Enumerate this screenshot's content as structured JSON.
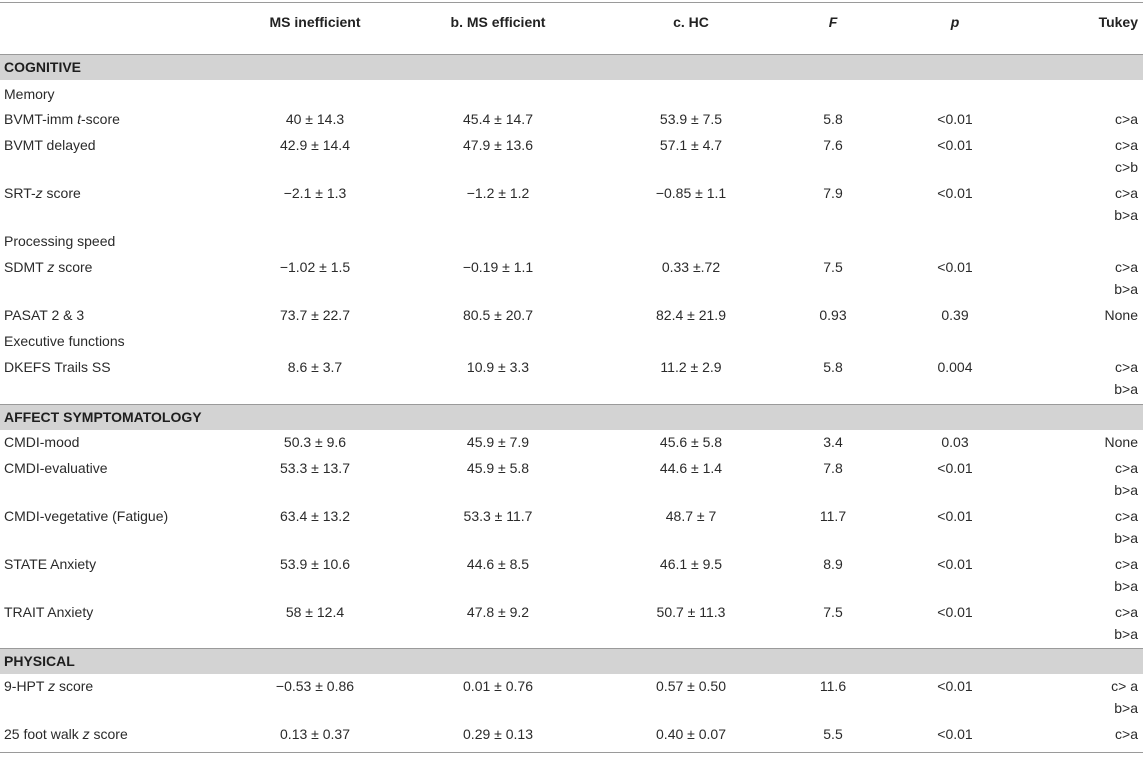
{
  "header": {
    "group_ms_inefficient": "MS inefficient",
    "group_ms_efficient": "b. MS efficient",
    "group_hc": "c. HC",
    "f": "F",
    "p": "p",
    "tukey": "Tukey"
  },
  "sections": {
    "cognitive": "COGNITIVE",
    "affect": "AFFECT SYMPTOMATOLOGY",
    "physical": "PHYSICAL"
  },
  "subheadings": {
    "memory": "Memory",
    "processing_speed": "Processing speed",
    "executive_functions": "Executive functions"
  },
  "rows": [
    {
      "label_pre": "BVMT-imm ",
      "label_em": "t",
      "label_post": "-score",
      "ineff": "40 ± 14.3",
      "eff": "45.4 ± 14.7",
      "hc": "53.9 ± 7.5",
      "f": "5.8",
      "p": "<0.01",
      "tukey": [
        "c>a"
      ]
    },
    {
      "label_pre": "BVMT delayed",
      "label_em": "",
      "label_post": "",
      "ineff": "42.9 ± 14.4",
      "eff": "47.9 ± 13.6",
      "hc": "57.1 ± 4.7",
      "f": "7.6",
      "p": "<0.01",
      "tukey": [
        "c>a",
        "c>b"
      ]
    },
    {
      "label_pre": "SRT-",
      "label_em": "z",
      "label_post": " score",
      "ineff": "−2.1 ± 1.3",
      "eff": "−1.2 ± 1.2",
      "hc": "−0.85 ± 1.1",
      "f": "7.9",
      "p": "<0.01",
      "tukey": [
        "c>a",
        "b>a"
      ]
    },
    {
      "label_pre": "SDMT ",
      "label_em": "z",
      "label_post": " score",
      "ineff": "−1.02 ± 1.5",
      "eff": "−0.19 ± 1.1",
      "hc": "0.33 ±.72",
      "f": "7.5",
      "p": "<0.01",
      "tukey": [
        "c>a",
        "b>a"
      ]
    },
    {
      "label_pre": "PASAT 2 & 3",
      "label_em": "",
      "label_post": "",
      "ineff": "73.7 ± 22.7",
      "eff": "80.5 ± 20.7",
      "hc": "82.4 ± 21.9",
      "f": "0.93",
      "p": "0.39",
      "tukey": [
        "None"
      ]
    },
    {
      "label_pre": "DKEFS Trails SS",
      "label_em": "",
      "label_post": "",
      "ineff": "8.6 ± 3.7",
      "eff": "10.9 ± 3.3",
      "hc": "11.2 ± 2.9",
      "f": "5.8",
      "p": "0.004",
      "tukey": [
        "c>a",
        "b>a"
      ]
    },
    {
      "label_pre": "CMDI-mood",
      "label_em": "",
      "label_post": "",
      "ineff": "50.3 ± 9.6",
      "eff": "45.9 ± 7.9",
      "hc": "45.6 ± 5.8",
      "f": "3.4",
      "p": "0.03",
      "tukey": [
        "None"
      ]
    },
    {
      "label_pre": "CMDI-evaluative",
      "label_em": "",
      "label_post": "",
      "ineff": "53.3 ± 13.7",
      "eff": "45.9 ± 5.8",
      "hc": "44.6 ± 1.4",
      "f": "7.8",
      "p": "<0.01",
      "tukey": [
        "c>a",
        "b>a"
      ]
    },
    {
      "label_pre": "CMDI-vegetative (Fatigue)",
      "label_em": "",
      "label_post": "",
      "ineff": "63.4 ± 13.2",
      "eff": "53.3 ± 11.7",
      "hc": "48.7 ± 7",
      "f": "11.7",
      "p": "<0.01",
      "tukey": [
        "c>a",
        "b>a"
      ]
    },
    {
      "label_pre": "STATE Anxiety",
      "label_em": "",
      "label_post": "",
      "ineff": "53.9 ± 10.6",
      "eff": "44.6 ± 8.5",
      "hc": "46.1 ± 9.5",
      "f": "8.9",
      "p": "<0.01",
      "tukey": [
        "c>a",
        "b>a"
      ]
    },
    {
      "label_pre": "TRAIT Anxiety",
      "label_em": "",
      "label_post": "",
      "ineff": "58 ± 12.4",
      "eff": "47.8 ± 9.2",
      "hc": "50.7 ± 11.3",
      "f": "7.5",
      "p": "<0.01",
      "tukey": [
        "c>a",
        "b>a"
      ]
    },
    {
      "label_pre": "9-HPT ",
      "label_em": "z",
      "label_post": " score",
      "ineff": "−0.53 ± 0.86",
      "eff": "0.01 ± 0.76",
      "hc": "0.57 ± 0.50",
      "f": "11.6",
      "p": "<0.01",
      "tukey": [
        "c> a",
        "b>a"
      ]
    },
    {
      "label_pre": "25 foot walk ",
      "label_em": "z",
      "label_post": " score",
      "ineff": "0.13 ± 0.37",
      "eff": "0.29 ± 0.13",
      "hc": "0.40 ± 0.07",
      "f": "5.5",
      "p": "<0.01",
      "tukey": [
        "c>a"
      ]
    }
  ]
}
